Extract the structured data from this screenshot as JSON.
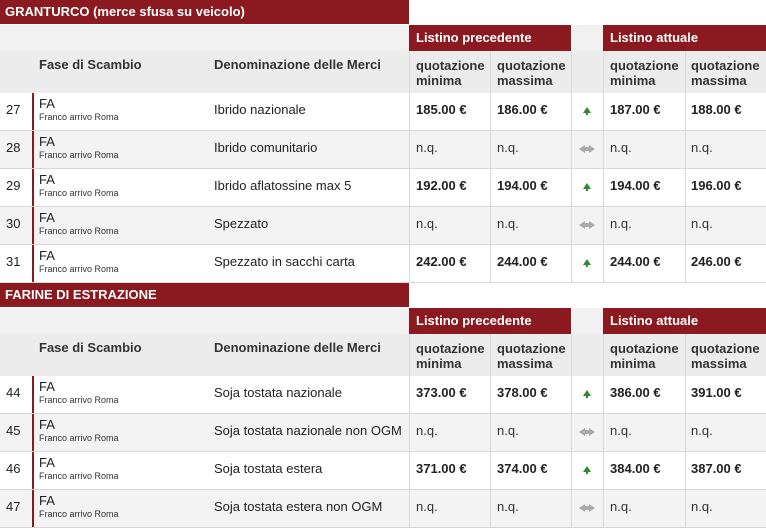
{
  "colors": {
    "accent": "#8a1a20",
    "up": "#2e8b2e",
    "equal": "#aaaaaa"
  },
  "sections": [
    {
      "title": "GRANTURCO (merce sfusa su veicolo)",
      "listino_precedente": "Listino precedente",
      "listino_attuale": "Listino attuale",
      "col_fase": "Fase di Scambio",
      "col_den": "Denominazione delle Merci",
      "col_qmin_1": "quotazione",
      "col_qmin_2": "minima",
      "col_qmax_1": "quotazione",
      "col_qmax_2": "massima",
      "rows": [
        {
          "num": "27",
          "fase": "FA",
          "fase_sub": "Franco arrivo Roma",
          "den": "Ibrido nazionale",
          "prev_min": "185.00 €",
          "prev_max": "186.00 €",
          "trend": "up-arrow-icon",
          "curr_min": "187.00 €",
          "curr_max": "188.00 €"
        },
        {
          "num": "28",
          "fase": "FA",
          "fase_sub": "Franco arrivo Roma",
          "den": "Ibrido comunitario",
          "prev_min": "n.q.",
          "prev_max": "n.q.",
          "trend": "equal-arrows-icon",
          "curr_min": "n.q.",
          "curr_max": "n.q."
        },
        {
          "num": "29",
          "fase": "FA",
          "fase_sub": "Franco arrivo Roma",
          "den": "Ibrido aflatossine max 5",
          "prev_min": "192.00 €",
          "prev_max": "194.00 €",
          "trend": "up-arrow-icon",
          "curr_min": "194.00 €",
          "curr_max": "196.00 €"
        },
        {
          "num": "30",
          "fase": "FA",
          "fase_sub": "Franco arrivo Roma",
          "den": "Spezzato",
          "prev_min": "n.q.",
          "prev_max": "n.q.",
          "trend": "equal-arrows-icon",
          "curr_min": "n.q.",
          "curr_max": "n.q."
        },
        {
          "num": "31",
          "fase": "FA",
          "fase_sub": "Franco arrivo Roma",
          "den": "Spezzato in sacchi carta",
          "prev_min": "242.00 €",
          "prev_max": "244.00 €",
          "trend": "up-arrow-icon",
          "curr_min": "244.00 €",
          "curr_max": "246.00 €"
        }
      ]
    },
    {
      "title": "FARINE DI ESTRAZIONE",
      "listino_precedente": "Listino precedente",
      "listino_attuale": "Listino attuale",
      "col_fase": "Fase di Scambio",
      "col_den": "Denominazione delle Merci",
      "col_qmin_1": "quotazione",
      "col_qmin_2": "minima",
      "col_qmax_1": "quotazione",
      "col_qmax_2": "massima",
      "rows": [
        {
          "num": "44",
          "fase": "FA",
          "fase_sub": "Franco arrivo Roma",
          "den": "Soja tostata nazionale",
          "prev_min": "373.00 €",
          "prev_max": "378.00 €",
          "trend": "up-arrow-icon",
          "curr_min": "386.00 €",
          "curr_max": "391.00 €"
        },
        {
          "num": "45",
          "fase": "FA",
          "fase_sub": "Franco arrivo Roma",
          "den": "Soja tostata nazionale non OGM",
          "prev_min": "n.q.",
          "prev_max": "n.q.",
          "trend": "equal-arrows-icon",
          "curr_min": "n.q.",
          "curr_max": "n.q."
        },
        {
          "num": "46",
          "fase": "FA",
          "fase_sub": "Franco arrivo Roma",
          "den": "Soja tostata estera",
          "prev_min": "371.00 €",
          "prev_max": "374.00 €",
          "trend": "up-arrow-icon",
          "curr_min": "384.00 €",
          "curr_max": "387.00 €"
        },
        {
          "num": "47",
          "fase": "FA",
          "fase_sub": "Franco arrivo Roma",
          "den": "Soja tostata estera non OGM",
          "prev_min": "n.q.",
          "prev_max": "n.q.",
          "trend": "equal-arrows-icon",
          "curr_min": "n.q.",
          "curr_max": "n.q."
        }
      ]
    }
  ]
}
